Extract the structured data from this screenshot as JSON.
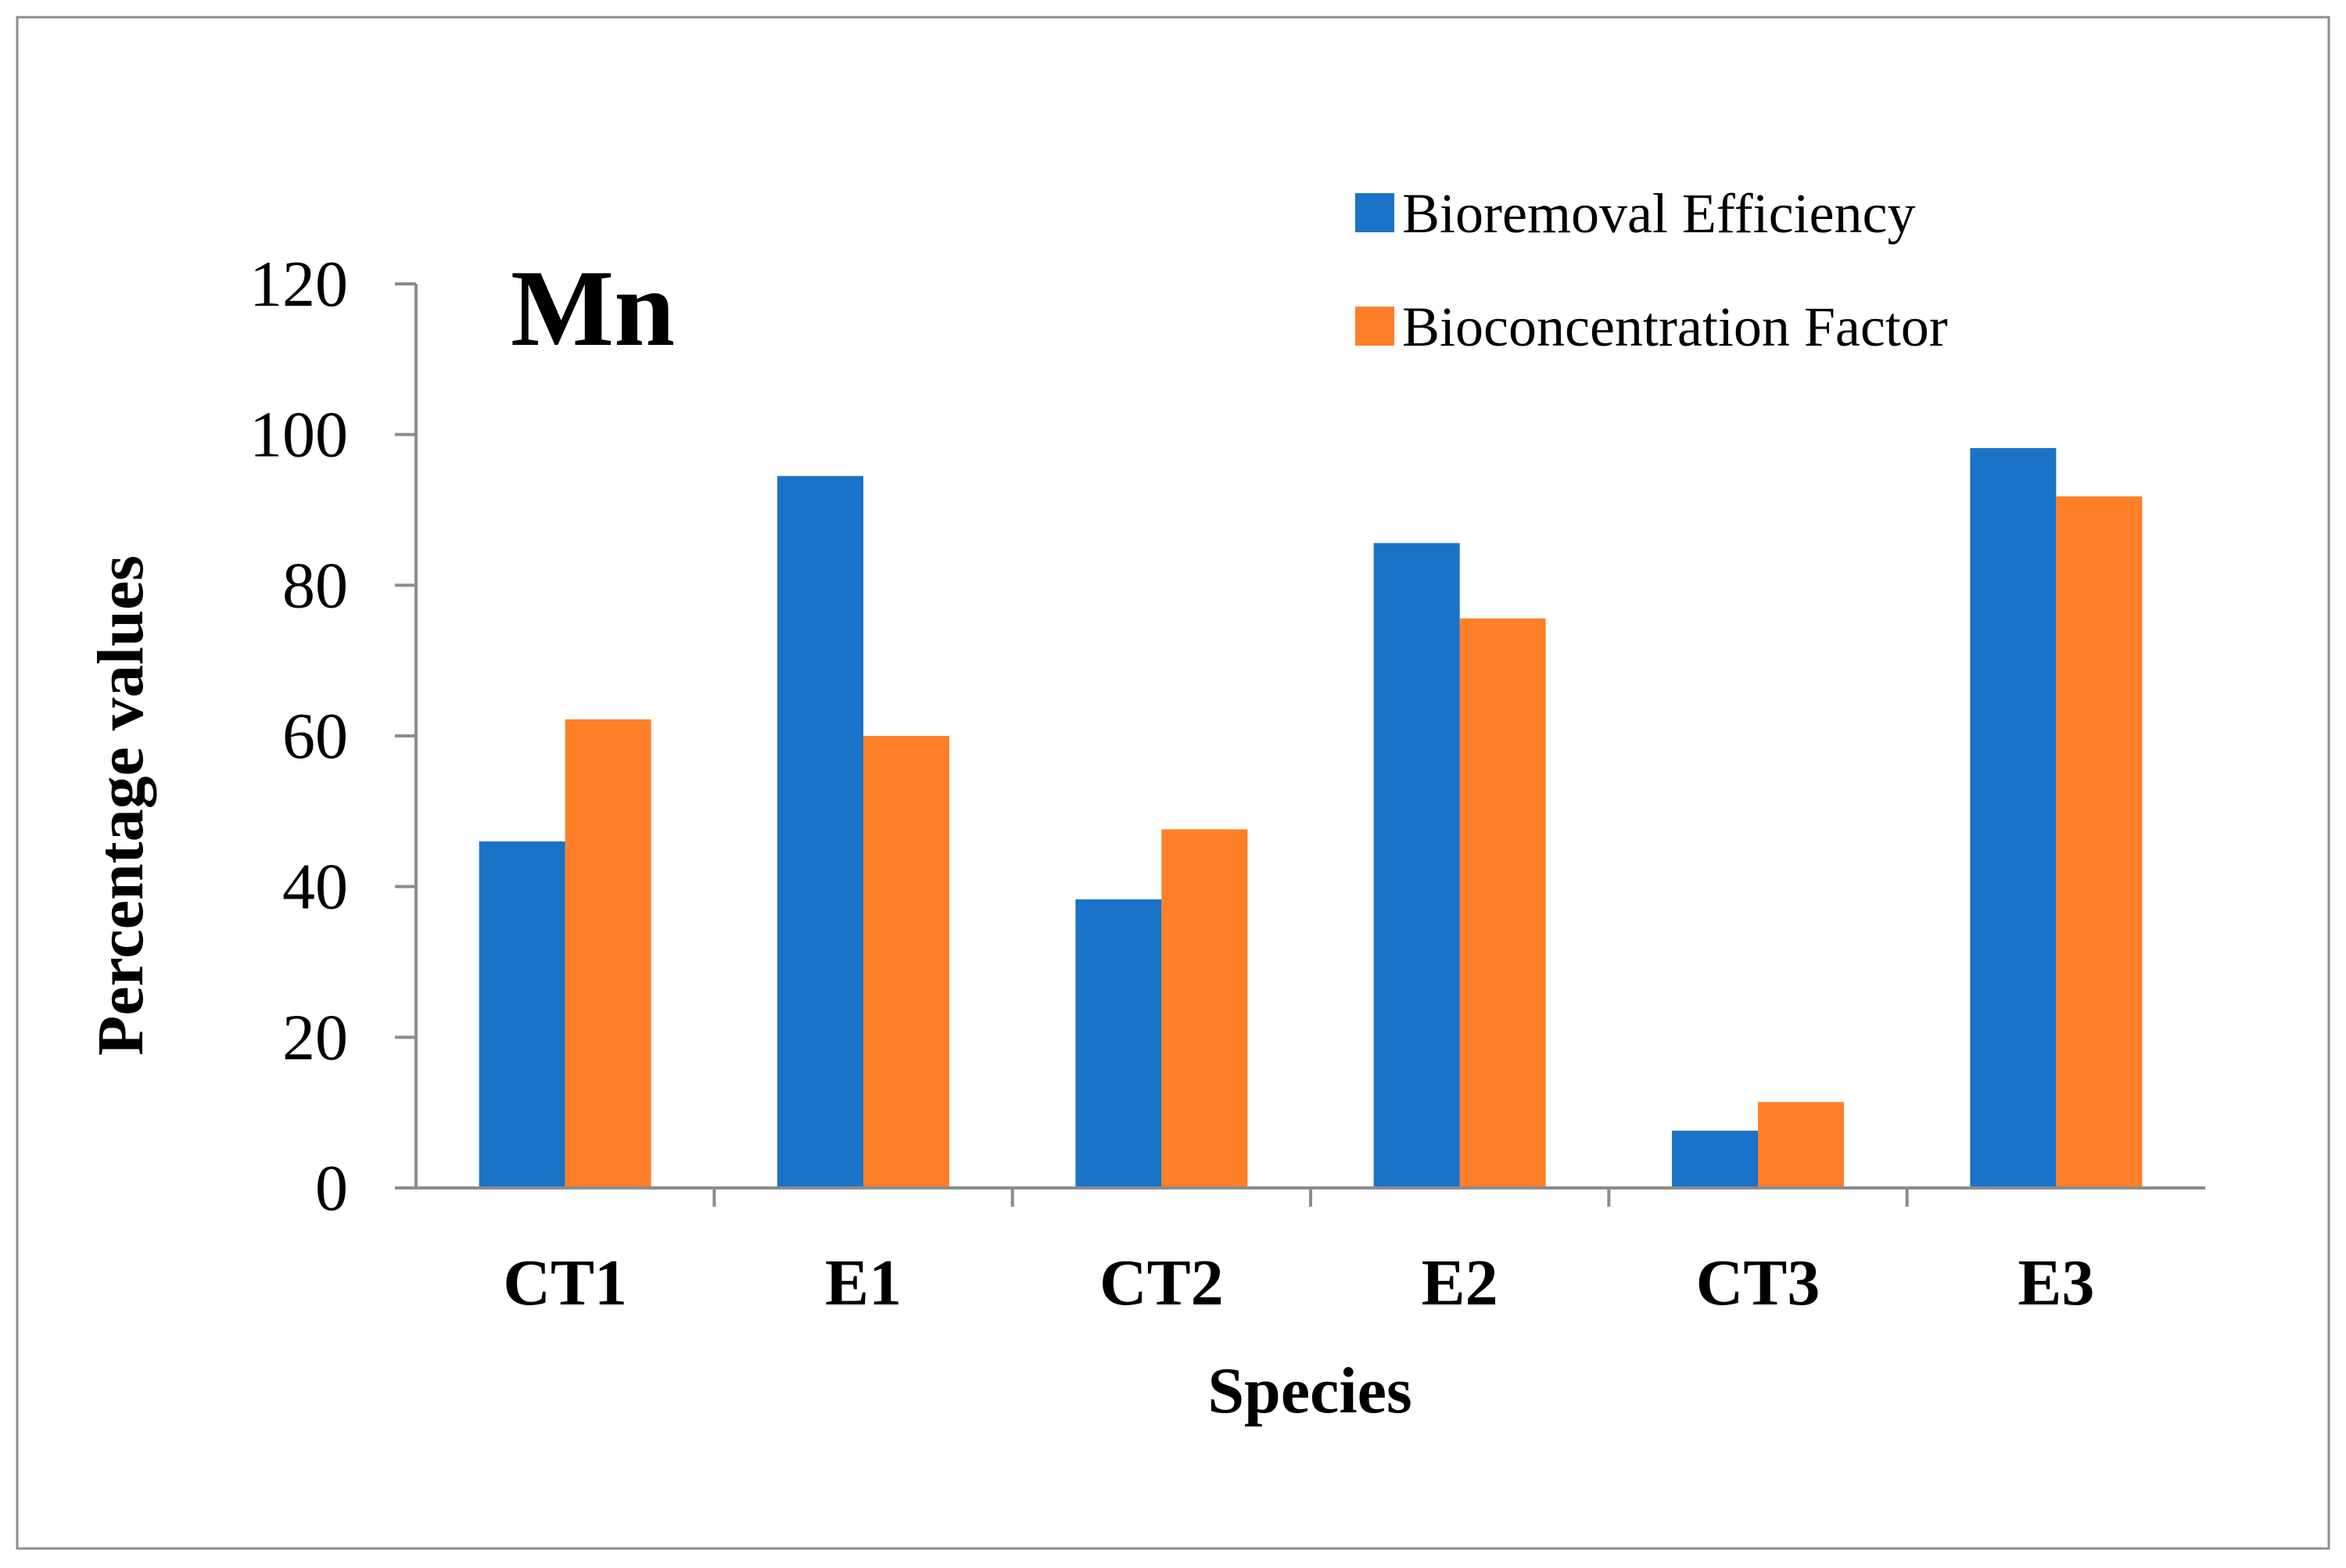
{
  "chart_data": {
    "type": "bar",
    "title": "Mn",
    "xlabel": "Species",
    "ylabel": "Percentage values",
    "categories": [
      "CT1",
      "E1",
      "CT2",
      "E2",
      "CT3",
      "E3"
    ],
    "series": [
      {
        "name": "Bioremoval Efficiency",
        "values": [
          46,
          94.5,
          38.3,
          85.6,
          7.6,
          98.2
        ]
      },
      {
        "name": "Bioconcentration Factor",
        "values": [
          62.2,
          60,
          47.6,
          75.6,
          11.4,
          91.8
        ]
      }
    ],
    "ylim": [
      0,
      120
    ],
    "yticks": [
      "0",
      "20",
      "40",
      "60",
      "80",
      "100",
      "120"
    ],
    "grid": false,
    "legend_position": "top-right",
    "colors": [
      "#1a73c8",
      "#fe7f28"
    ]
  }
}
